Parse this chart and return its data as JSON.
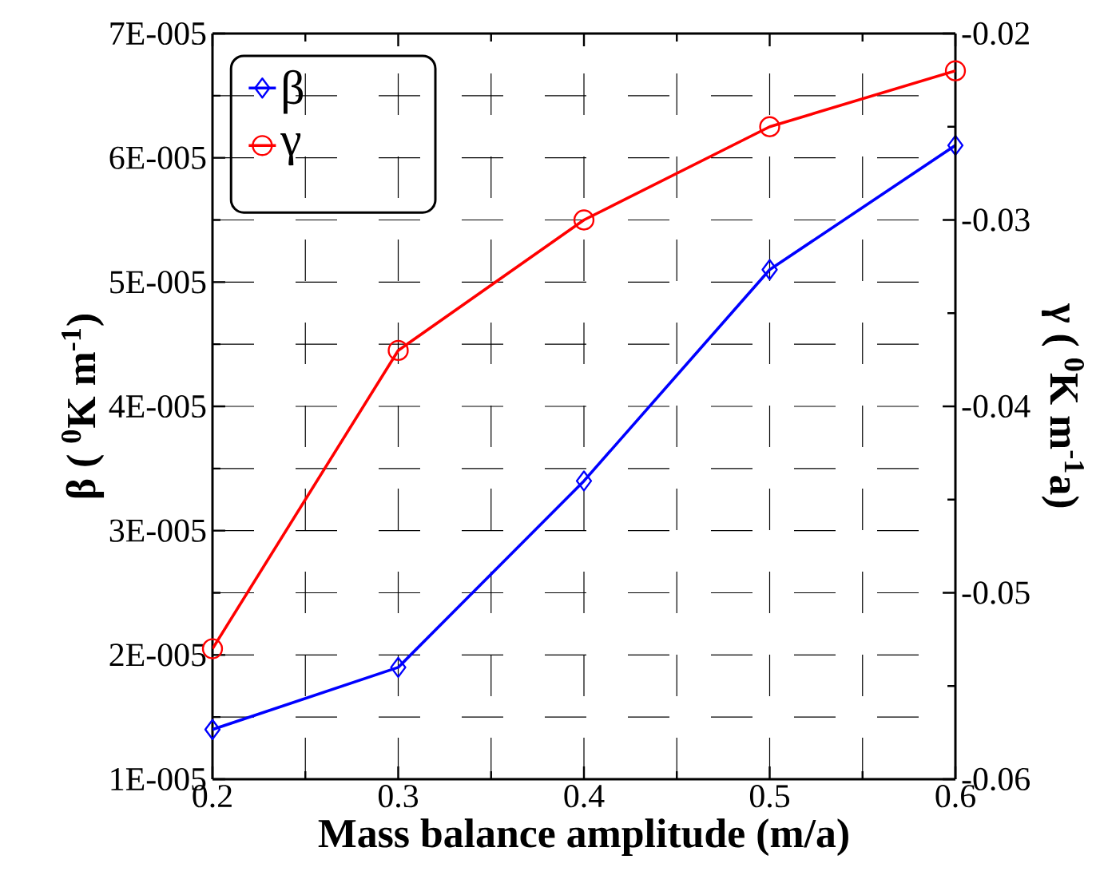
{
  "chart_data": {
    "type": "line",
    "xlabel": "Mass balance amplitude (m/a)",
    "ylabel": "β ( $^{0}$K m$^{-1}$)",
    "y2label": "γ ( $^{0}$K m$^{-1}$a)",
    "x": [
      0.2,
      0.3,
      0.4,
      0.5,
      0.6
    ],
    "series": [
      {
        "name": "β",
        "color": "#0000ff",
        "marker": "diamond",
        "values": [
          1.4e-05,
          1.9e-05,
          3.4e-05,
          5.1e-05,
          6.1e-05
        ]
      },
      {
        "name": "γ",
        "color": "#ff0000",
        "marker": "circle",
        "axis": "y2",
        "values": [
          -0.053,
          -0.037,
          -0.03,
          -0.025,
          -0.022
        ]
      }
    ],
    "xlim": [
      0.2,
      0.6
    ],
    "xticks": [
      0.2,
      0.3,
      0.4,
      0.5,
      0.6
    ],
    "ylim": [
      1e-05,
      7e-05
    ],
    "yticks": [
      {
        "value": 1e-05,
        "label": "1E-005"
      },
      {
        "value": 2e-05,
        "label": "2E-005"
      },
      {
        "value": 3e-05,
        "label": "3E-005"
      },
      {
        "value": 4e-05,
        "label": "4E-005"
      },
      {
        "value": 5e-05,
        "label": "5E-005"
      },
      {
        "value": 6e-05,
        "label": "6E-005"
      },
      {
        "value": 7e-05,
        "label": "7E-005"
      }
    ],
    "y2lim": [
      -0.06,
      -0.02
    ],
    "y2ticks": [
      -0.06,
      -0.05,
      -0.04,
      -0.03,
      -0.02
    ],
    "grid": true,
    "legend": "top left",
    "line_style": "solid"
  }
}
